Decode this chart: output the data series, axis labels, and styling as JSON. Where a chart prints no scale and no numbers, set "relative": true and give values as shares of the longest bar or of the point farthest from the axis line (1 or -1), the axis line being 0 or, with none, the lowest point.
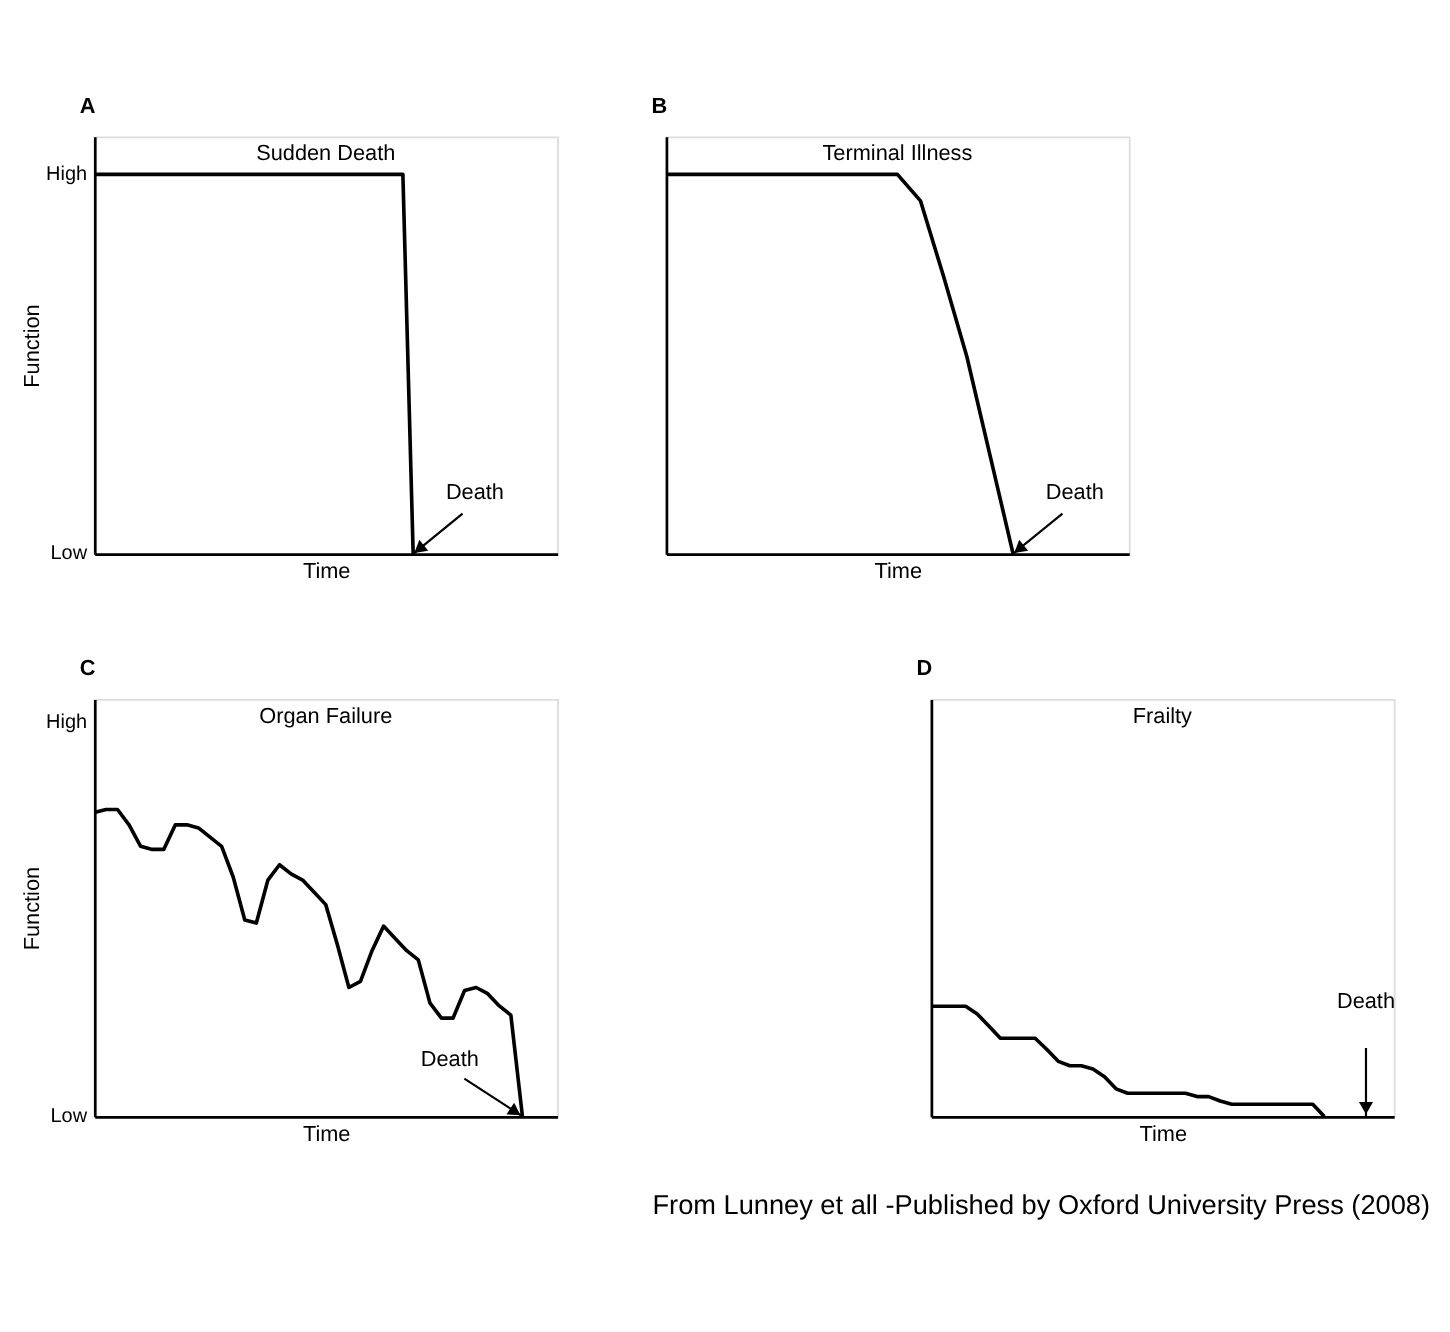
{
  "chart_data": [
    {
      "type": "line",
      "relative": true,
      "title": "Sudden Death",
      "xlabel": "Time",
      "ylabel": "Function",
      "annotations": [
        "A",
        "Death",
        "High",
        "Low"
      ],
      "categories": [
        null,
        null,
        null,
        null,
        null,
        null,
        null,
        null,
        null,
        null,
        null,
        null,
        null,
        null,
        null,
        null,
        null,
        null,
        null,
        null,
        null,
        null,
        null,
        null,
        null,
        null,
        null,
        null,
        null,
        null,
        null,
        null,
        null,
        null,
        null,
        null,
        null,
        null,
        null,
        null,
        null,
        null,
        null,
        null,
        null,
        null
      ],
      "values": [
        1,
        1,
        1,
        1,
        1,
        1,
        1,
        1,
        1,
        1,
        1,
        1,
        1,
        1,
        1,
        1,
        1,
        1,
        1,
        1,
        1,
        1,
        1,
        1,
        1,
        1,
        1,
        1,
        1,
        1,
        1,
        0,
        null,
        null,
        null,
        null,
        null,
        null,
        null,
        null,
        null,
        null,
        null,
        null,
        null,
        null
      ],
      "color": "#000000"
    },
    {
      "type": "line",
      "relative": true,
      "title": "Terminal Illness",
      "xlabel": "Time",
      "annotations": [
        "B",
        "Death"
      ],
      "categories": [
        null,
        null,
        null,
        null,
        null,
        null,
        null,
        null,
        null,
        null,
        null,
        null,
        null,
        null,
        null,
        null,
        null,
        null,
        null,
        null,
        null
      ],
      "values": [
        1,
        1,
        1,
        1,
        1,
        1,
        1,
        1,
        1,
        1,
        1,
        0.93,
        0.73,
        0.52,
        0.26,
        0,
        null,
        null,
        null,
        null,
        null
      ],
      "color": "#000000"
    },
    {
      "type": "line",
      "relative": true,
      "title": "Organ Failure",
      "xlabel": "Time",
      "ylabel": "Function",
      "annotations": [
        "C",
        "Death",
        "High",
        "Low"
      ],
      "categories": [
        null,
        null,
        null,
        null,
        null,
        null,
        null,
        null,
        null,
        null,
        null,
        null,
        null,
        null,
        null,
        null,
        null,
        null,
        null,
        null,
        null,
        null,
        null,
        null,
        null,
        null,
        null,
        null,
        null,
        null,
        null,
        null,
        null,
        null,
        null,
        null,
        null,
        null,
        null,
        null,
        null
      ],
      "values": [
        0.99,
        1,
        1,
        0.95,
        0.88,
        0.87,
        0.87,
        0.95,
        0.95,
        0.94,
        0.91,
        0.88,
        0.78,
        0.64,
        0.63,
        0.77,
        0.82,
        0.79,
        0.77,
        0.73,
        0.69,
        0.56,
        0.42,
        0.44,
        0.54,
        0.62,
        0.58,
        0.54,
        0.51,
        0.37,
        0.32,
        0.32,
        0.41,
        0.42,
        0.4,
        0.36,
        0.33,
        0,
        null,
        null,
        null
      ],
      "color": "#000000"
    },
    {
      "type": "line",
      "relative": true,
      "title": "Frailty",
      "xlabel": "Time",
      "annotations": [
        "D",
        "Death",
        "From Lunney et all -Published by Oxford University Press (2008)"
      ],
      "categories": [
        null,
        null,
        null,
        null,
        null,
        null,
        null,
        null,
        null,
        null,
        null,
        null,
        null,
        null,
        null,
        null,
        null,
        null,
        null,
        null,
        null,
        null,
        null,
        null,
        null,
        null,
        null,
        null,
        null,
        null,
        null,
        null,
        null,
        null,
        null,
        null,
        null,
        null,
        null,
        null,
        null
      ],
      "values": [
        1,
        1,
        1,
        1,
        0.93,
        0.82,
        0.71,
        0.71,
        0.71,
        0.71,
        0.61,
        0.5,
        0.46,
        0.46,
        0.43,
        0.36,
        0.25,
        0.21,
        0.21,
        0.21,
        0.21,
        0.21,
        0.21,
        0.18,
        0.18,
        0.14,
        0.11,
        0.11,
        0.11,
        0.11,
        0.11,
        0.11,
        0.11,
        0.11,
        0,
        null,
        null,
        null,
        null,
        null,
        null
      ],
      "color": "#000000"
    }
  ]
}
